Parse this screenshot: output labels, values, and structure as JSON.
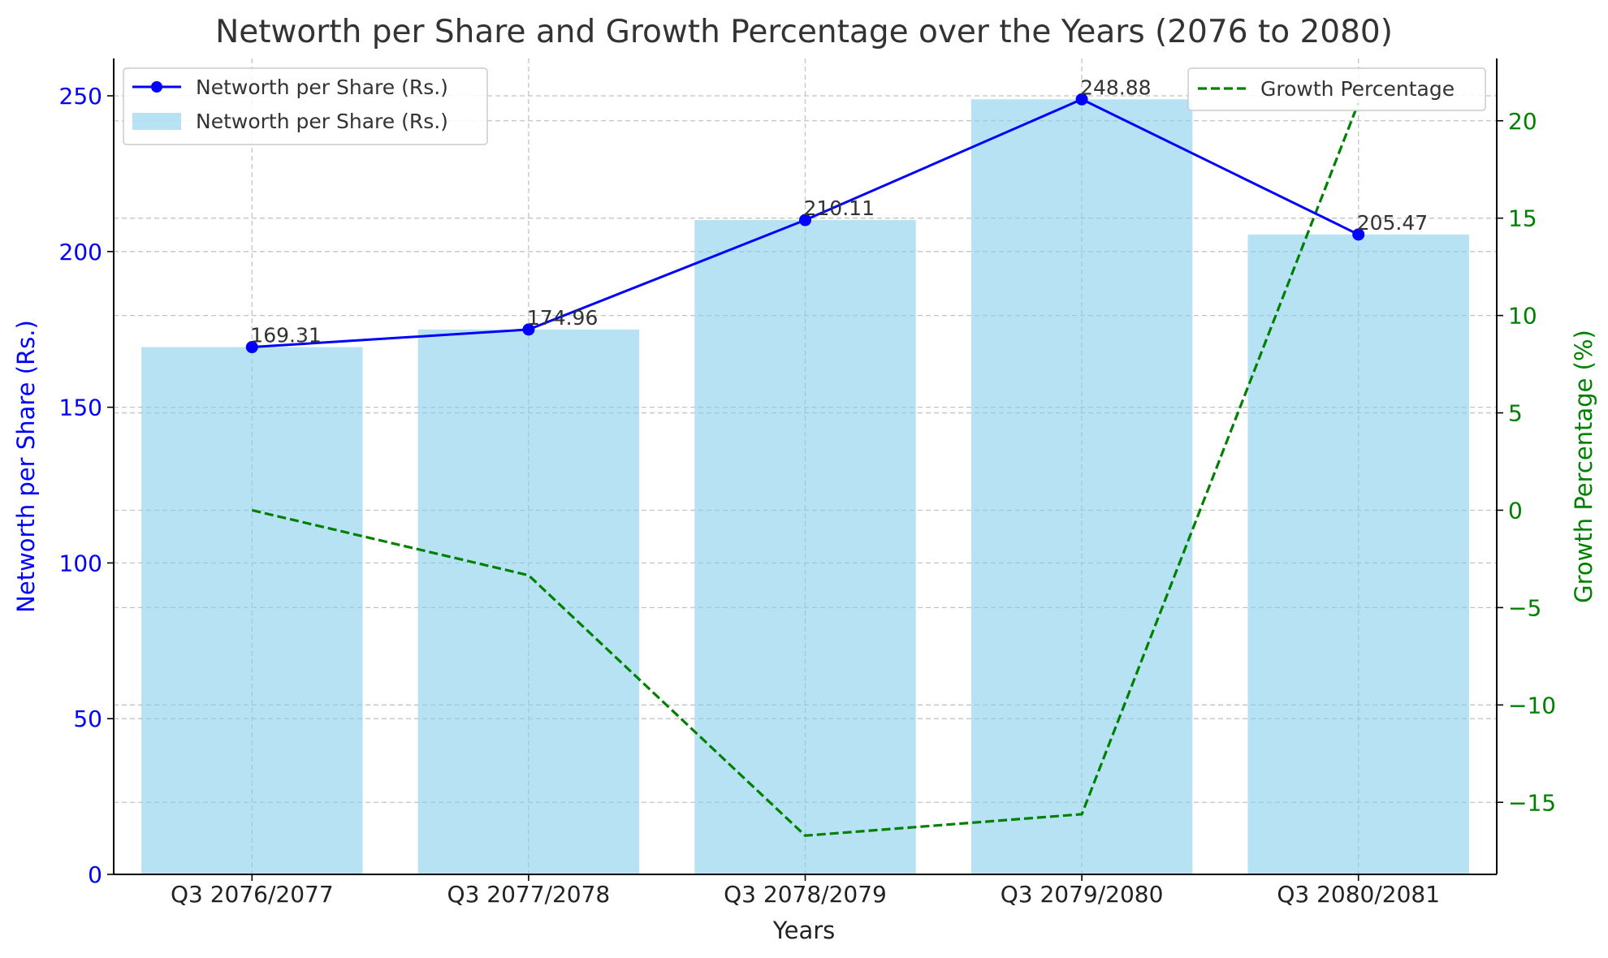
{
  "chart_data": {
    "type": "bar",
    "title": "Networth per Share and Growth Percentage over the Years (2076 to 2080)",
    "xlabel": "Years",
    "ylabel": "Networth per Share (Rs.)",
    "y2label": "Growth Percentage (%)",
    "categories": [
      "Q3 2076/2077",
      "Q3 2077/2078",
      "Q3 2078/2079",
      "Q3 2079/2080",
      "Q3 2080/2081"
    ],
    "ylim": [
      0,
      262
    ],
    "y2lim": [
      -18.7,
      23.2
    ],
    "yticks": [
      0,
      50,
      100,
      150,
      200,
      250
    ],
    "y2ticks": [
      -15,
      -10,
      -5,
      0,
      5,
      10,
      15,
      20
    ],
    "grid": true,
    "series": [
      {
        "name": "Networth per Share (Rs.)",
        "kind": "bar",
        "axis": "left",
        "color": "#87ceeb",
        "values": [
          169.31,
          174.96,
          210.11,
          248.88,
          205.47
        ]
      },
      {
        "name": "Networth per Share (Rs.)",
        "kind": "line",
        "axis": "left",
        "color": "#0000ff",
        "marker": "circle",
        "values": [
          169.31,
          174.96,
          210.11,
          248.88,
          205.47
        ],
        "labels": [
          "169.31",
          "174.96",
          "210.11",
          "248.88",
          "205.47"
        ]
      },
      {
        "name": "Growth Percentage",
        "kind": "line",
        "axis": "right",
        "color": "#008000",
        "dash": "dashed",
        "values": [
          0,
          -3.34,
          -16.71,
          -15.61,
          20.92
        ]
      }
    ],
    "legends": [
      {
        "placement": "upper left",
        "entries": [
          {
            "series": 1,
            "label": "Networth per Share (Rs.)"
          },
          {
            "series": 0,
            "label": "Networth per Share (Rs.)"
          }
        ]
      },
      {
        "placement": "upper right",
        "entries": [
          {
            "series": 2,
            "label": "Growth Percentage"
          }
        ]
      }
    ],
    "colors": {
      "left_axis": "#0000ff",
      "right_axis": "#008000",
      "text": "#333333"
    }
  }
}
